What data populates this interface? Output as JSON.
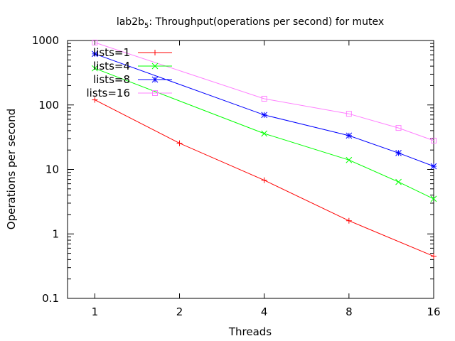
{
  "chart_data": {
    "type": "line",
    "title_prefix": "lab2b",
    "title_subscript": "5",
    "title_suffix": ": Throughput(operations per second) for mutex",
    "xlabel": "Threads",
    "ylabel": "Operations per second",
    "x_scale": "log2",
    "y_scale": "log10",
    "xlim": [
      0.8,
      16
    ],
    "ylim": [
      0.1,
      1000
    ],
    "xticks": [
      1,
      2,
      4,
      8,
      16
    ],
    "xtick_labels": [
      "1",
      "2",
      "4",
      "8",
      "16"
    ],
    "yticks": [
      0.1,
      1,
      10,
      100,
      1000
    ],
    "ytick_labels": [
      "0.1",
      "1",
      "10",
      "100",
      "1000"
    ],
    "grid": false,
    "legend_position": "top-left",
    "series": [
      {
        "name": "lists=1",
        "color": "#ff0000",
        "marker": "plus",
        "x": [
          1,
          2,
          4,
          8,
          16
        ],
        "y": [
          120,
          25.5,
          6.8,
          1.6,
          0.45
        ]
      },
      {
        "name": "lists=4",
        "color": "#00ff00",
        "marker": "cross",
        "x": [
          1,
          4,
          8,
          12,
          16
        ],
        "y": [
          370,
          36,
          14,
          6.4,
          3.5
        ]
      },
      {
        "name": "lists=8",
        "color": "#0000ff",
        "marker": "star",
        "x": [
          1,
          4,
          8,
          12,
          16
        ],
        "y": [
          620,
          70,
          33.5,
          18,
          11.2
        ]
      },
      {
        "name": "lists=16",
        "color": "#ff80ff",
        "marker": "square",
        "x": [
          1,
          4,
          8,
          12,
          16
        ],
        "y": [
          930,
          125,
          73,
          44,
          28
        ]
      }
    ]
  }
}
